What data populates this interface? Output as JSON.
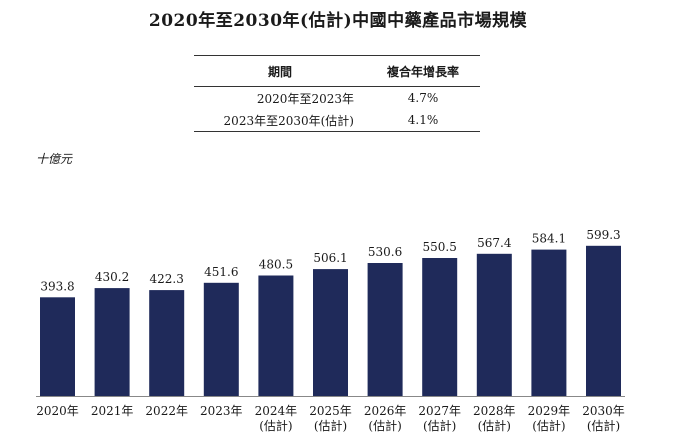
{
  "title": "2020年至2030年(估計)中國中藥產品市場規模",
  "cagr_table": {
    "headers": [
      "期間",
      "複合年增長率"
    ],
    "rows": [
      {
        "period": "2020年至2023年",
        "rate": "4.7%"
      },
      {
        "period": "2023年至2030年(估計)",
        "rate": "4.1%"
      }
    ]
  },
  "colors": {
    "bar": "#1f2a5a"
  },
  "chart_data": {
    "type": "bar",
    "ylabel": "十億元",
    "categories": [
      [
        "2020年"
      ],
      [
        "2021年"
      ],
      [
        "2022年"
      ],
      [
        "2023年"
      ],
      [
        "2024年",
        "(估計)"
      ],
      [
        "2025年",
        "(估計)"
      ],
      [
        "2026年",
        "(估計)"
      ],
      [
        "2027年",
        "(估計)"
      ],
      [
        "2028年",
        "(估計)"
      ],
      [
        "2029年",
        "(估計)"
      ],
      [
        "2030年",
        "(估計)"
      ]
    ],
    "values": [
      393.8,
      430.2,
      422.3,
      451.6,
      480.5,
      506.1,
      530.6,
      550.5,
      567.4,
      584.1,
      599.3
    ],
    "value_labels": [
      "393.8",
      "430.2",
      "422.3",
      "451.6",
      "480.5",
      "506.1",
      "530.6",
      "550.5",
      "567.4",
      "584.1",
      "599.3"
    ],
    "ylim": [
      0,
      700
    ],
    "grid": false,
    "legend": false
  }
}
